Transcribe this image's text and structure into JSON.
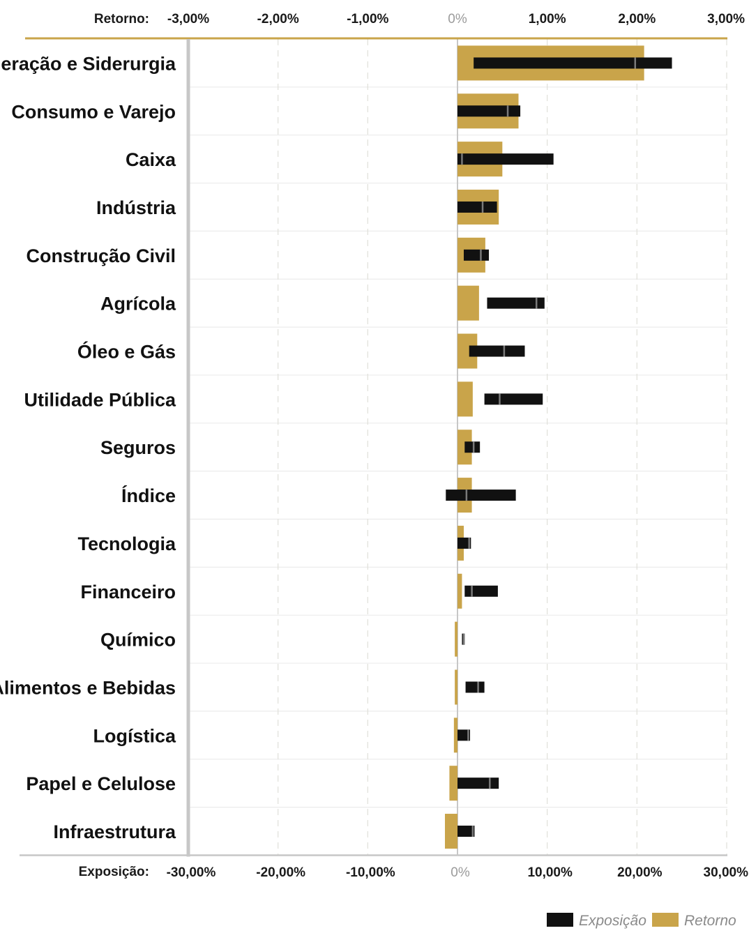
{
  "chart_data": {
    "type": "bar",
    "top_axis": {
      "title": "Retorno:",
      "ticks": [
        -3,
        -2,
        -1,
        0,
        1,
        2,
        3
      ],
      "tick_labels": [
        "-3,00%",
        "-2,00%",
        "-1,00%",
        "0%",
        "1,00%",
        "2,00%",
        "3,00%"
      ],
      "range": [
        -3,
        3
      ],
      "unit": "%"
    },
    "bottom_axis": {
      "title": "Exposição:",
      "ticks": [
        -30,
        -20,
        -10,
        0,
        10,
        20,
        30
      ],
      "tick_labels": [
        "-30,00%",
        "-20,00%",
        "-10,00%",
        "0%",
        "10,00%",
        "20,00%",
        "30,00%"
      ],
      "range": [
        -30,
        30
      ],
      "unit": "%"
    },
    "categories": [
      "Mineração e Siderurgia",
      "Consumo e Varejo",
      "Caixa",
      "Indústria",
      "Construção Civil",
      "Agrícola",
      "Óleo e Gás",
      "Utilidade Pública",
      "Seguros",
      "Índice",
      "Tecnologia",
      "Financeiro",
      "Químico",
      "Alimentos e Bebidas",
      "Logística",
      "Papel e Celulose",
      "Infraestrutura"
    ],
    "series": [
      {
        "name": "Retorno",
        "color": "#c9a44a",
        "axis": "top",
        "values": [
          2.08,
          0.68,
          0.5,
          0.46,
          0.31,
          0.24,
          0.22,
          0.17,
          0.16,
          0.16,
          0.07,
          0.05,
          -0.03,
          -0.03,
          -0.04,
          -0.09,
          -0.14
        ]
      },
      {
        "name": "Exposição",
        "color": "#111111",
        "axis": "bottom",
        "ranges": [
          [
            1.8,
            23.9,
            19.8
          ],
          [
            0.0,
            7.0,
            5.6
          ],
          [
            0.0,
            10.7,
            0.5
          ],
          [
            0.0,
            4.4,
            2.8
          ],
          [
            0.7,
            3.5,
            2.6
          ],
          [
            3.3,
            9.7,
            8.8
          ],
          [
            1.3,
            7.5,
            5.2
          ],
          [
            3.0,
            9.5,
            4.7
          ],
          [
            0.8,
            2.5,
            1.8
          ],
          [
            -1.3,
            6.5,
            1.0
          ],
          [
            0.0,
            1.5,
            1.3
          ],
          [
            0.8,
            4.5,
            1.6
          ],
          [
            0.5,
            0.8,
            0.7
          ],
          [
            0.9,
            3.0,
            2.3
          ],
          [
            0.0,
            1.4,
            1.2
          ],
          [
            0.0,
            4.6,
            3.6
          ],
          [
            0.0,
            1.9,
            1.7
          ]
        ]
      }
    ],
    "legend": {
      "position": "bottom-right",
      "items": [
        {
          "label": "Exposição",
          "color": "#111111"
        },
        {
          "label": "Retorno",
          "color": "#c9a44a"
        }
      ]
    },
    "grid": true,
    "colors": {
      "accent": "#c9a44a",
      "exposure": "#111111",
      "marker": "#7a7a7a",
      "grid_dash": "#e2e2dc",
      "row_line": "#ececec",
      "axis": "#c7c7c7"
    }
  }
}
